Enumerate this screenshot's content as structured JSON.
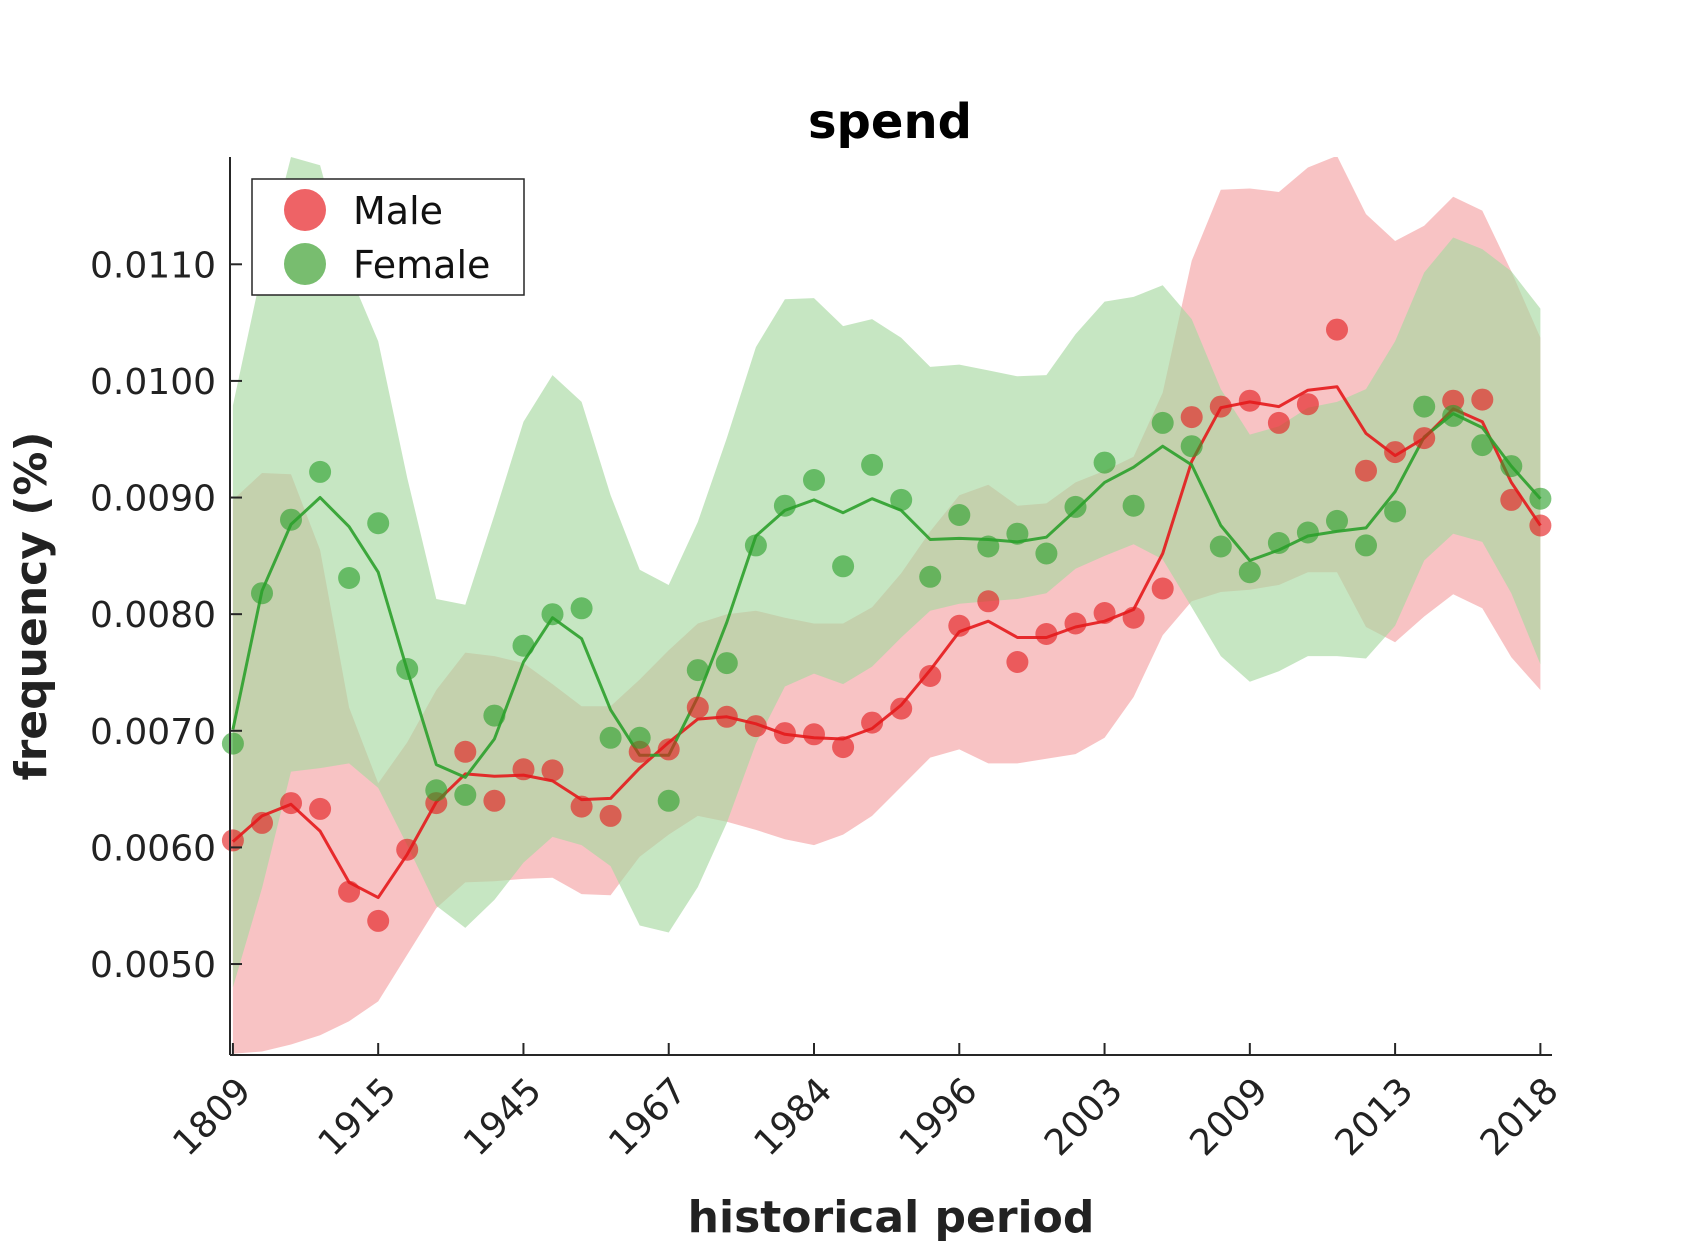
{
  "chart_data": {
    "type": "line",
    "title": "spend",
    "xlabel": "historical period",
    "ylabel": "frequency (%)",
    "x_tick_labels": [
      "1809",
      "1915",
      "1945",
      "1967",
      "1984",
      "1996",
      "2003",
      "2009",
      "2013",
      "2018"
    ],
    "y_ticks": [
      {
        "value": 0.005,
        "label": "0.0050"
      },
      {
        "value": 0.006,
        "label": "0.0060"
      },
      {
        "value": 0.007,
        "label": "0.0070"
      },
      {
        "value": 0.008,
        "label": "0.0080"
      },
      {
        "value": 0.009,
        "label": "0.0090"
      },
      {
        "value": 0.01,
        "label": "0.0100"
      },
      {
        "value": 0.011,
        "label": "0.0110"
      }
    ],
    "ylim": [
      0.00422,
      0.01192
    ],
    "x_index_range": [
      -0.1,
      45.4
    ],
    "legend": {
      "position": "top-left",
      "entries": [
        "Male",
        "Female"
      ]
    },
    "series": [
      {
        "name": "Male",
        "color": "#e41a1c",
        "band_color": "#f4a3a5",
        "points": [
          0.00606,
          0.00621,
          0.00638,
          0.00633,
          0.00562,
          0.00537,
          0.00598,
          0.00638,
          0.00682,
          0.0064,
          0.00667,
          0.00666,
          0.00635,
          0.00627,
          0.00682,
          0.00684,
          0.0072,
          0.00712,
          0.00704,
          0.00698,
          0.00697,
          0.00686,
          0.00707,
          0.00719,
          0.00747,
          0.0079,
          0.00811,
          0.00759,
          0.00783,
          0.00792,
          0.00801,
          0.00797,
          0.00822,
          0.00969,
          0.00978,
          0.00983,
          0.00964,
          0.0098,
          0.01044,
          0.00923,
          0.00939,
          0.00951,
          0.00983,
          0.00984,
          0.00898,
          0.00876
        ],
        "line": [
          0.00605,
          0.00627,
          0.00637,
          0.00614,
          0.0057,
          0.00557,
          0.00594,
          0.00639,
          0.00663,
          0.00661,
          0.00662,
          0.00657,
          0.00641,
          0.00642,
          0.00668,
          0.0069,
          0.0071,
          0.00712,
          0.00706,
          0.00697,
          0.00694,
          0.00693,
          0.00702,
          0.00722,
          0.00752,
          0.00785,
          0.00794,
          0.0078,
          0.0078,
          0.00789,
          0.00794,
          0.00804,
          0.00852,
          0.00931,
          0.00977,
          0.00982,
          0.00978,
          0.00992,
          0.00995,
          0.00955,
          0.00936,
          0.00951,
          0.00976,
          0.00965,
          0.00913,
          0.00876
        ],
        "band_upper": [
          0.00898,
          0.00921,
          0.0092,
          0.00855,
          0.0072,
          0.00655,
          0.0069,
          0.00735,
          0.00767,
          0.00764,
          0.00758,
          0.0074,
          0.00721,
          0.00721,
          0.00744,
          0.00769,
          0.00792,
          0.008,
          0.00803,
          0.00797,
          0.00792,
          0.00792,
          0.00806,
          0.00835,
          0.00871,
          0.00902,
          0.00911,
          0.00893,
          0.00895,
          0.00913,
          0.00923,
          0.00935,
          0.0099,
          0.01103,
          0.01164,
          0.01165,
          0.01162,
          0.01183,
          0.01193,
          0.01143,
          0.0112,
          0.01133,
          0.01158,
          0.01146,
          0.01094,
          0.01037
        ],
        "band_lower": [
          0.00423,
          0.00425,
          0.00431,
          0.00439,
          0.00451,
          0.00468,
          0.00508,
          0.00548,
          0.0057,
          0.00571,
          0.00573,
          0.00574,
          0.0056,
          0.00559,
          0.00592,
          0.00611,
          0.00627,
          0.00622,
          0.00615,
          0.00607,
          0.00602,
          0.00611,
          0.00627,
          0.00652,
          0.00677,
          0.00684,
          0.00672,
          0.00672,
          0.00676,
          0.0068,
          0.00694,
          0.00729,
          0.00782,
          0.00811,
          0.00819,
          0.00821,
          0.00825,
          0.00836,
          0.00836,
          0.00789,
          0.00776,
          0.00798,
          0.00817,
          0.00805,
          0.00763,
          0.00735
        ]
      },
      {
        "name": "Female",
        "color": "#2ca02c",
        "band_color": "#a8d8a2",
        "points": [
          0.00689,
          0.00818,
          0.00881,
          0.00922,
          0.00831,
          0.00878,
          0.00753,
          0.00649,
          0.00645,
          0.00713,
          0.00773,
          0.008,
          0.00805,
          0.00694,
          0.00694,
          0.0064,
          0.00752,
          0.00758,
          0.00859,
          0.00893,
          0.00915,
          0.00841,
          0.00928,
          0.00898,
          0.00832,
          0.00885,
          0.00858,
          0.00869,
          0.00852,
          0.00892,
          0.0093,
          0.00893,
          0.00964,
          0.00944,
          0.00858,
          0.00836,
          0.00861,
          0.0087,
          0.0088,
          0.00859,
          0.00888,
          0.00978,
          0.0097,
          0.00945,
          0.00927,
          0.00899
        ],
        "line": [
          0.00701,
          0.0082,
          0.00877,
          0.009,
          0.00875,
          0.00836,
          0.00752,
          0.00671,
          0.0066,
          0.00693,
          0.00759,
          0.00797,
          0.00779,
          0.00718,
          0.00679,
          0.00679,
          0.00729,
          0.00793,
          0.00867,
          0.00889,
          0.00898,
          0.00887,
          0.00899,
          0.00889,
          0.00864,
          0.00865,
          0.00864,
          0.00862,
          0.00866,
          0.00889,
          0.00913,
          0.00926,
          0.00944,
          0.00928,
          0.00876,
          0.00846,
          0.00855,
          0.00867,
          0.00871,
          0.00874,
          0.00905,
          0.00952,
          0.00972,
          0.0096,
          0.00927,
          0.00899
        ],
        "band_upper": [
          0.00979,
          0.01095,
          0.01192,
          0.01185,
          0.01093,
          0.01034,
          0.00917,
          0.00813,
          0.00808,
          0.00885,
          0.00965,
          0.01005,
          0.00982,
          0.00902,
          0.00838,
          0.00825,
          0.00879,
          0.00951,
          0.01029,
          0.0107,
          0.01071,
          0.01047,
          0.01053,
          0.01037,
          0.01012,
          0.01014,
          0.01009,
          0.01004,
          0.01005,
          0.0104,
          0.01068,
          0.01072,
          0.01082,
          0.01053,
          0.00993,
          0.00954,
          0.00961,
          0.00977,
          0.00982,
          0.00993,
          0.01034,
          0.01093,
          0.01123,
          0.01113,
          0.01094,
          0.01062
        ],
        "band_lower": [
          0.0048,
          0.00565,
          0.00665,
          0.00668,
          0.00672,
          0.00651,
          0.00602,
          0.0055,
          0.00531,
          0.00555,
          0.00587,
          0.00609,
          0.00602,
          0.00584,
          0.00533,
          0.00527,
          0.00566,
          0.00621,
          0.00689,
          0.00738,
          0.00749,
          0.0074,
          0.00755,
          0.0078,
          0.00803,
          0.00809,
          0.00811,
          0.00813,
          0.00818,
          0.00839,
          0.0085,
          0.0086,
          0.00847,
          0.00806,
          0.00764,
          0.00742,
          0.00751,
          0.00764,
          0.00764,
          0.00762,
          0.0079,
          0.00846,
          0.00869,
          0.00862,
          0.00818,
          0.00757
        ]
      }
    ]
  }
}
